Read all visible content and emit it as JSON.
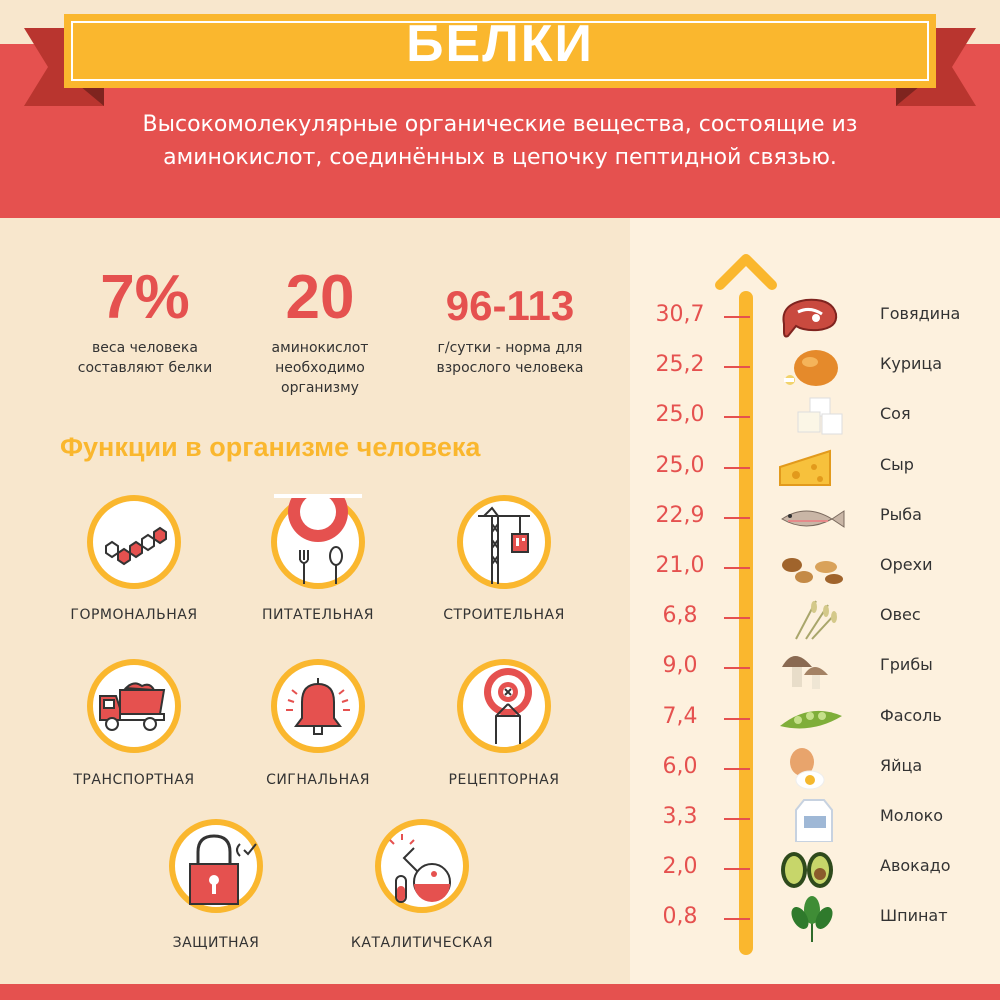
{
  "header": {
    "title": "БЕЛКИ",
    "subtitle": "Высокомолекулярные органические вещества, состоящие из аминокислот, соединённых в цепочку пептидной связью."
  },
  "stats": [
    {
      "value": "7%",
      "caption": "веса человека составляют белки"
    },
    {
      "value": "20",
      "caption": "аминокислот необходимо организму"
    },
    {
      "value": "96-113",
      "caption": "г/сутки - норма для взрослого человека"
    }
  ],
  "functions": {
    "title": "Функции в организме человека",
    "items": [
      {
        "label": "ГОРМОНАЛЬНАЯ",
        "icon": "hexagon-molecule-icon"
      },
      {
        "label": "ПИТАТЕЛЬНАЯ",
        "icon": "plate-fork-spoon-icon"
      },
      {
        "label": "СТРОИТЕЛЬНАЯ",
        "icon": "crane-icon"
      },
      {
        "label": "ТРАНСПОРТНАЯ",
        "icon": "truck-icon"
      },
      {
        "label": "СИГНАЛЬНАЯ",
        "icon": "bell-icon"
      },
      {
        "label": "РЕЦЕПТОРНАЯ",
        "icon": "target-icon"
      },
      {
        "label": "ЗАЩИТНАЯ",
        "icon": "padlock-icon"
      },
      {
        "label": "КАТАЛИТИЧЕСКАЯ",
        "icon": "flask-icon"
      }
    ]
  },
  "foods": [
    {
      "value": "30,7",
      "name": "Говядина",
      "icon": "steak-icon"
    },
    {
      "value": "25,2",
      "name": "Курица",
      "icon": "roast-chicken-icon"
    },
    {
      "value": "25,0",
      "name": "Соя",
      "icon": "tofu-icon"
    },
    {
      "value": "25,0",
      "name": "Сыр",
      "icon": "cheese-icon"
    },
    {
      "value": "22,9",
      "name": "Рыба",
      "icon": "fish-icon"
    },
    {
      "value": "21,0",
      "name": "Орехи",
      "icon": "nuts-icon"
    },
    {
      "value": "6,8",
      "name": "Овес",
      "icon": "oats-icon"
    },
    {
      "value": "9,0",
      "name": "Грибы",
      "icon": "mushroom-icon"
    },
    {
      "value": "7,4",
      "name": "Фасоль",
      "icon": "beans-icon"
    },
    {
      "value": "6,0",
      "name": "Яйца",
      "icon": "eggs-icon"
    },
    {
      "value": "3,3",
      "name": "Молоко",
      "icon": "milk-carton-icon"
    },
    {
      "value": "2,0",
      "name": "Авокадо",
      "icon": "avocado-icon"
    },
    {
      "value": "0,8",
      "name": "Шпинат",
      "icon": "spinach-icon"
    }
  ],
  "colors": {
    "red": "#e5514f",
    "yellow": "#fab72e",
    "dark_red": "#b9352f",
    "background": "#f8e7cd"
  }
}
